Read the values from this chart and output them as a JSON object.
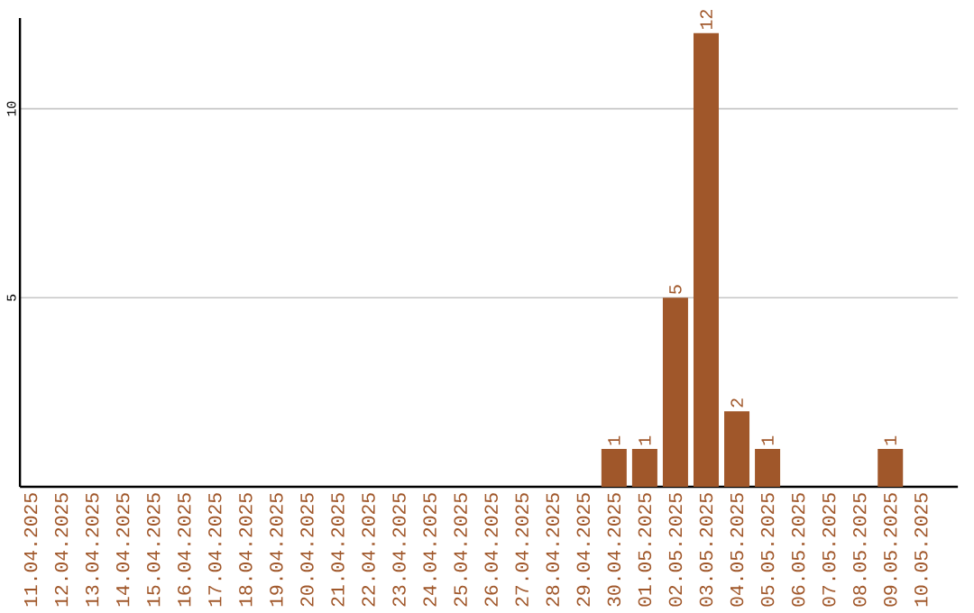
{
  "chart_data": {
    "type": "bar",
    "categories": [
      "11.04.2025",
      "12.04.2025",
      "13.04.2025",
      "14.04.2025",
      "15.04.2025",
      "16.04.2025",
      "17.04.2025",
      "18.04.2025",
      "19.04.2025",
      "20.04.2025",
      "21.04.2025",
      "22.04.2025",
      "23.04.2025",
      "24.04.2025",
      "25.04.2025",
      "26.04.2025",
      "27.04.2025",
      "28.04.2025",
      "29.04.2025",
      "30.04.2025",
      "01.05.2025",
      "02.05.2025",
      "03.05.2025",
      "04.05.2025",
      "05.05.2025",
      "06.05.2025",
      "07.05.2025",
      "08.05.2025",
      "09.05.2025",
      "10.05.2025"
    ],
    "values": [
      0,
      0,
      0,
      0,
      0,
      0,
      0,
      0,
      0,
      0,
      0,
      0,
      0,
      0,
      0,
      0,
      0,
      0,
      0,
      1,
      1,
      5,
      12,
      2,
      1,
      0,
      0,
      0,
      1,
      0
    ],
    "value_labels": [
      null,
      null,
      null,
      null,
      null,
      null,
      null,
      null,
      null,
      null,
      null,
      null,
      null,
      null,
      null,
      null,
      null,
      null,
      null,
      "1",
      "1",
      "5",
      "12",
      "2",
      "1",
      null,
      null,
      null,
      "1",
      null
    ],
    "color": "#a0572a",
    "ylim": [
      0,
      12.4
    ],
    "yticks": [
      5,
      10
    ],
    "grid": "y"
  }
}
